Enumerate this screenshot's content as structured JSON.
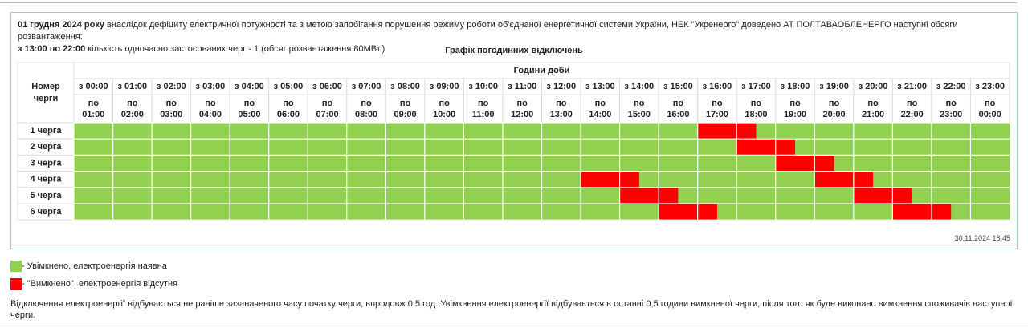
{
  "intro": {
    "date": "01 грудня 2024 року",
    "text1": "внаслідок дефіциту електричної потужності та з метою запобігання порушення режиму роботи об'єднаної енергетичної системи України, НЕК \"Укренерго\" доведено АТ ПОЛТАВАОБЛЕНЕРГО наступні обсяги розвантаження:",
    "period": "з 13:00 по 22:00",
    "text2": "кількість одночасно застосованих черг - 1 (обсяг розвантаження 80МВт.)"
  },
  "schedule": {
    "title": "Графік погодинних відключень",
    "row_header": "Номер черги",
    "hours_header": "Години доби",
    "columns": [
      {
        "from": "з 00:00",
        "to": [
          "по",
          "01:00"
        ]
      },
      {
        "from": "з 01:00",
        "to": [
          "по",
          "02:00"
        ]
      },
      {
        "from": "з 02:00",
        "to": [
          "по",
          "03:00"
        ]
      },
      {
        "from": "з 03:00",
        "to": [
          "по",
          "04:00"
        ]
      },
      {
        "from": "з 04:00",
        "to": [
          "по",
          "05:00"
        ]
      },
      {
        "from": "з 05:00",
        "to": [
          "по",
          "06:00"
        ]
      },
      {
        "from": "з 06:00",
        "to": [
          "по",
          "07:00"
        ]
      },
      {
        "from": "з 07:00",
        "to": [
          "по",
          "08:00"
        ]
      },
      {
        "from": "з 08:00",
        "to": [
          "по",
          "09:00"
        ]
      },
      {
        "from": "з 09:00",
        "to": [
          "по",
          "10:00"
        ]
      },
      {
        "from": "з 10:00",
        "to": [
          "по",
          "11:00"
        ]
      },
      {
        "from": "з 11:00",
        "to": [
          "по",
          "12:00"
        ]
      },
      {
        "from": "з 12:00",
        "to": [
          "по",
          "13:00"
        ]
      },
      {
        "from": "з 13:00",
        "to": [
          "по",
          "14:00"
        ]
      },
      {
        "from": "з 14:00",
        "to": [
          "по",
          "15:00"
        ]
      },
      {
        "from": "з 15:00",
        "to": [
          "по",
          "16:00"
        ]
      },
      {
        "from": "з 16:00",
        "to": [
          "по",
          "17:00"
        ]
      },
      {
        "from": "з 17:00",
        "to": [
          "по",
          "18:00"
        ]
      },
      {
        "from": "з 18:00",
        "to": [
          "по",
          "19:00"
        ]
      },
      {
        "from": "з 19:00",
        "to": [
          "по",
          "20:00"
        ]
      },
      {
        "from": "з 20:00",
        "to": [
          "по",
          "21:00"
        ]
      },
      {
        "from": "з 21:00",
        "to": [
          "по",
          "22:00"
        ]
      },
      {
        "from": "з 22:00",
        "to": [
          "по",
          "23:00"
        ]
      },
      {
        "from": "з 23:00",
        "to": [
          "по",
          "00:00"
        ]
      }
    ],
    "on_color": "#92d050",
    "off_color": "#ff0000",
    "queues": [
      {
        "name": "1 черга",
        "outages": [
          [
            16,
            17.5
          ]
        ]
      },
      {
        "name": "2 черга",
        "outages": [
          [
            17,
            18.5
          ]
        ]
      },
      {
        "name": "3 черга",
        "outages": [
          [
            18,
            19.5
          ]
        ]
      },
      {
        "name": "4 черга",
        "outages": [
          [
            13,
            14.5
          ],
          [
            19,
            20.5
          ]
        ]
      },
      {
        "name": "5 черга",
        "outages": [
          [
            14,
            15.5
          ],
          [
            20,
            21.5
          ]
        ]
      },
      {
        "name": "6 черга",
        "outages": [
          [
            15,
            16.5
          ],
          [
            21,
            22.5
          ]
        ]
      }
    ]
  },
  "updated": "30.11.2024 18:45",
  "legend": [
    {
      "color": "#92d050",
      "label": "- Увімкнено, електроенергія наявна"
    },
    {
      "color": "#ff0000",
      "label": "- \"Вимкнено\", електроенергія відсутня"
    }
  ],
  "note": "Відключення електроенергії відбувається не раніше зазаначеного часу початку черги, впродовж 0,5 год. Увімкнення електроенергії відбувається в останні 0,5 години вимкненої черги, після того як буде виконано вимкнення споживачів наступної черги."
}
